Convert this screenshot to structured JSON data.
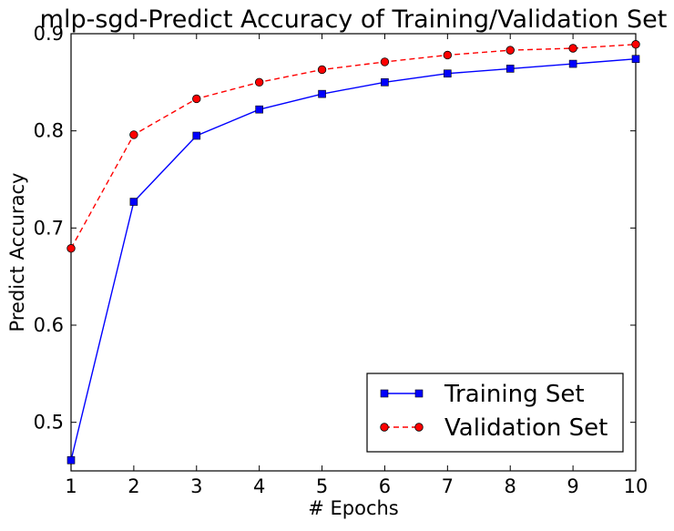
{
  "chart_data": {
    "type": "line",
    "title": "mlp-sgd-Predict Accuracy of Training/Validation Set",
    "xlabel": "# Epochs",
    "ylabel": "Predict Accuracy",
    "x": [
      1,
      2,
      3,
      4,
      5,
      6,
      7,
      8,
      9,
      10
    ],
    "xlim": [
      1,
      10
    ],
    "ylim": [
      0.45,
      0.9
    ],
    "xticks": [
      1,
      2,
      3,
      4,
      5,
      6,
      7,
      8,
      9,
      10
    ],
    "yticks": [
      0.5,
      0.6,
      0.7,
      0.8,
      0.9
    ],
    "grid": false,
    "legend_position": "lower-right",
    "series": [
      {
        "name": "Training Set",
        "color": "#0000ff",
        "marker": "square",
        "linestyle": "solid",
        "values": [
          0.461,
          0.727,
          0.795,
          0.822,
          0.838,
          0.85,
          0.859,
          0.864,
          0.869,
          0.874
        ]
      },
      {
        "name": "Validation Set",
        "color": "#ff0000",
        "marker": "circle",
        "linestyle": "dashed",
        "values": [
          0.679,
          0.796,
          0.833,
          0.85,
          0.863,
          0.871,
          0.878,
          0.883,
          0.885,
          0.889
        ]
      }
    ]
  }
}
